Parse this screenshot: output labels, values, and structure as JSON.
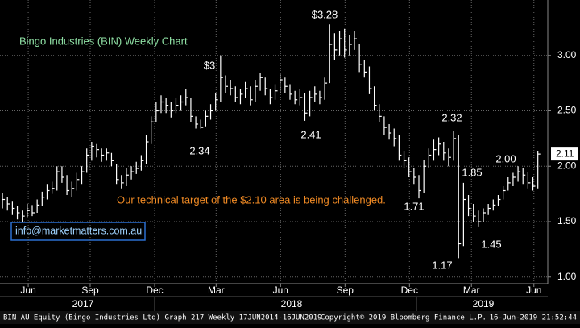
{
  "chart_data": {
    "type": "hlc",
    "title": "Bingo Industries (BIN) Weekly Chart",
    "comment": "Our technical target of the $2.10 area is being challenged.",
    "contact": "info@marketmatters.com.au",
    "last_price": {
      "value": 2.11,
      "label": "2.11"
    },
    "color": "#ffffff",
    "grid": true,
    "high": [
      1.76,
      1.72,
      1.68,
      1.64,
      1.6,
      1.66,
      1.65,
      1.7,
      1.77,
      1.84,
      1.86,
      2.0,
      2.0,
      1.92,
      1.86,
      1.94,
      2.0,
      2.16,
      2.22,
      2.2,
      2.16,
      2.16,
      2.12,
      2.02,
      1.92,
      1.98,
      2.0,
      2.04,
      2.1,
      2.28,
      2.45,
      2.58,
      2.64,
      2.62,
      2.58,
      2.62,
      2.64,
      2.7,
      2.62,
      2.45,
      2.42,
      2.5,
      2.56,
      2.66,
      3.0,
      2.82,
      2.78,
      2.72,
      2.7,
      2.76,
      2.72,
      2.78,
      2.84,
      2.8,
      2.7,
      2.74,
      2.84,
      2.8,
      2.74,
      2.68,
      2.7,
      2.66,
      2.68,
      2.72,
      2.68,
      2.8,
      3.28,
      3.2,
      3.22,
      3.24,
      3.18,
      3.22,
      3.1,
      2.96,
      2.9,
      2.72,
      2.56,
      2.45,
      2.38,
      2.34,
      2.28,
      2.14,
      2.08,
      1.98,
      1.92,
      2.06,
      2.16,
      2.24,
      2.26,
      2.22,
      2.16,
      2.32,
      2.28,
      1.85,
      1.74,
      1.66,
      1.6,
      1.62,
      1.66,
      1.7,
      1.74,
      1.82,
      1.9,
      1.94,
      2.0,
      1.98,
      1.95,
      1.9,
      2.14
    ],
    "low": [
      1.62,
      1.6,
      1.56,
      1.52,
      1.5,
      1.54,
      1.55,
      1.58,
      1.64,
      1.7,
      1.75,
      1.78,
      1.85,
      1.74,
      1.72,
      1.78,
      1.84,
      1.94,
      2.05,
      2.08,
      2.04,
      2.05,
      2.0,
      1.84,
      1.8,
      1.82,
      1.88,
      1.93,
      1.96,
      2.02,
      2.2,
      2.4,
      2.48,
      2.48,
      2.44,
      2.48,
      2.5,
      2.55,
      2.4,
      2.34,
      2.34,
      2.36,
      2.42,
      2.5,
      2.58,
      2.66,
      2.64,
      2.58,
      2.56,
      2.62,
      2.55,
      2.58,
      2.68,
      2.64,
      2.56,
      2.6,
      2.66,
      2.66,
      2.6,
      2.56,
      2.55,
      2.41,
      2.45,
      2.58,
      2.56,
      2.6,
      2.75,
      2.96,
      3.0,
      2.98,
      3.0,
      3.05,
      2.85,
      2.8,
      2.65,
      2.5,
      2.4,
      2.28,
      2.24,
      2.18,
      2.05,
      1.98,
      1.9,
      1.84,
      1.71,
      1.76,
      1.98,
      2.05,
      2.1,
      2.05,
      2.0,
      2.05,
      1.17,
      1.28,
      1.55,
      1.5,
      1.45,
      1.5,
      1.56,
      1.6,
      1.64,
      1.7,
      1.78,
      1.82,
      1.86,
      1.84,
      1.8,
      1.78,
      1.8
    ],
    "close": [
      1.7,
      1.66,
      1.62,
      1.58,
      1.55,
      1.6,
      1.58,
      1.65,
      1.72,
      1.78,
      1.8,
      1.95,
      1.9,
      1.78,
      1.8,
      1.88,
      1.95,
      2.1,
      2.18,
      2.15,
      2.1,
      2.12,
      2.05,
      1.88,
      1.85,
      1.92,
      1.95,
      1.98,
      2.05,
      2.22,
      2.4,
      2.5,
      2.58,
      2.55,
      2.5,
      2.55,
      2.58,
      2.62,
      2.45,
      2.38,
      2.35,
      2.45,
      2.5,
      2.6,
      2.8,
      2.72,
      2.7,
      2.62,
      2.65,
      2.7,
      2.6,
      2.72,
      2.8,
      2.7,
      2.62,
      2.68,
      2.78,
      2.72,
      2.65,
      2.6,
      2.62,
      2.48,
      2.62,
      2.65,
      2.62,
      2.75,
      3.1,
      3.05,
      3.15,
      3.05,
      3.1,
      3.15,
      2.92,
      2.85,
      2.7,
      2.55,
      2.45,
      2.35,
      2.3,
      2.25,
      2.1,
      2.05,
      1.95,
      1.9,
      1.78,
      2.0,
      2.1,
      2.15,
      2.2,
      2.12,
      2.08,
      2.25,
      1.3,
      1.7,
      1.62,
      1.55,
      1.5,
      1.58,
      1.62,
      1.65,
      1.7,
      1.78,
      1.85,
      1.9,
      1.95,
      1.92,
      1.85,
      1.82,
      2.11
    ],
    "annotations": [
      "$3.28",
      "$3",
      "2.34",
      "2.41",
      "1.71",
      "2.32",
      "1.85",
      "1.17",
      "1.45",
      "2.00"
    ],
    "xlim": [
      -0.5,
      110
    ],
    "xticks": [
      {
        "value": 5.2,
        "label": "Jun"
      },
      {
        "value": 17.7,
        "label": "Sep"
      },
      {
        "value": 30.7,
        "label": "Dec"
      },
      {
        "value": 43.1,
        "label": "Mar"
      },
      {
        "value": 56.1,
        "label": "Jun"
      },
      {
        "value": 69.1,
        "label": "Sep"
      },
      {
        "value": 82.1,
        "label": "Dec"
      },
      {
        "value": 94.6,
        "label": "Mar"
      },
      {
        "value": 107.2,
        "label": "Jun"
      }
    ],
    "years": [
      "2017",
      "2018",
      "2019"
    ],
    "ylim": [
      0.94,
      3.5
    ],
    "yticks": [
      {
        "value": 1,
        "label": "1.00"
      },
      {
        "value": 1.5,
        "label": "1.50"
      },
      {
        "value": 2,
        "label": "2.00"
      },
      {
        "value": 2.5,
        "label": "2.50"
      },
      {
        "value": 3,
        "label": "3.00"
      }
    ],
    "footer": {
      "left": "BIN AU Equity (Bingo Industries Ltd) Graph 217  Weekly 17JUN2014-16JUN2019",
      "center": "Copyright© 2019 Bloomberg Finance L.P.",
      "right": "16-Jun-2019 21:52:44"
    }
  }
}
